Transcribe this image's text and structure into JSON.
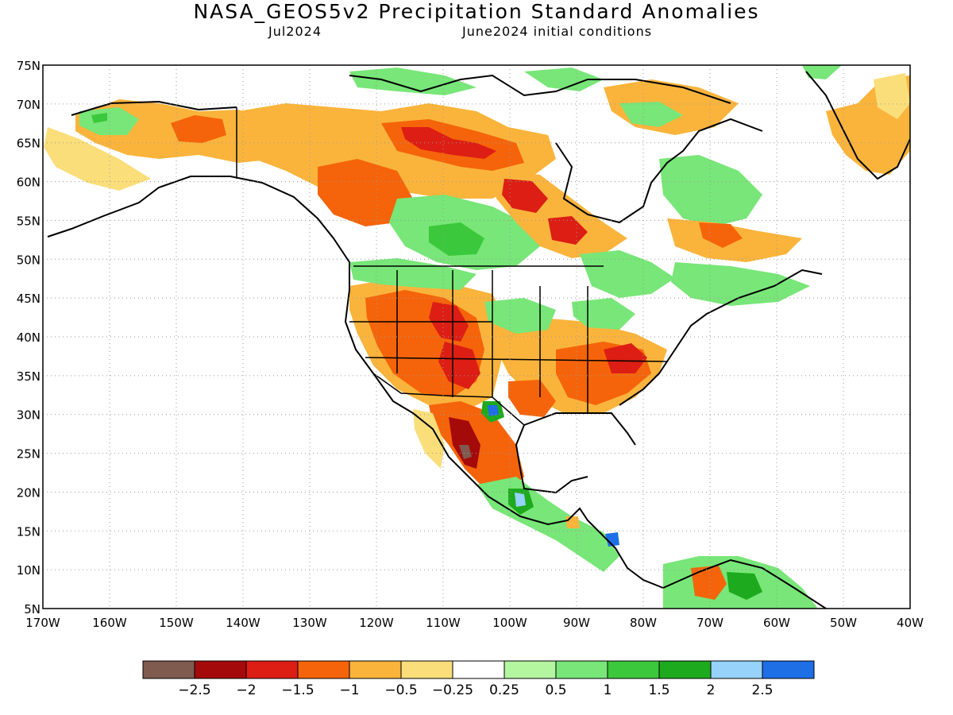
{
  "header": {
    "title": "NASA_GEOS5v2 Precipitation Standard Anomalies",
    "target_month": "Jul2024",
    "initial_conditions": "June2024 initial conditions"
  },
  "map": {
    "lat_labels": [
      "75N",
      "70N",
      "65N",
      "60N",
      "55N",
      "50N",
      "45N",
      "40N",
      "35N",
      "30N",
      "25N",
      "20N",
      "15N",
      "10N",
      "5N"
    ],
    "lon_labels": [
      "170W",
      "160W",
      "150W",
      "140W",
      "130W",
      "120W",
      "110W",
      "100W",
      "90W",
      "80W",
      "70W",
      "60W",
      "50W",
      "40W"
    ],
    "lat_range": [
      5,
      75
    ],
    "lon_range": [
      -170,
      -40
    ],
    "grid": "dotted"
  },
  "legend": {
    "colors": [
      "#7f5a4e",
      "#a50a0a",
      "#dc1e14",
      "#f5640a",
      "#fab43c",
      "#fade7a",
      "#ffffff",
      "#b4f5a0",
      "#78e678",
      "#3cc83c",
      "#1eaa1e",
      "#96d2fa",
      "#1e6ee6"
    ],
    "labels": [
      "-2.5",
      "-2",
      "-1.5",
      "-1",
      "-0.5",
      "-0.25",
      "0.25",
      "0.5",
      "1",
      "1.5",
      "2",
      "2.5"
    ]
  },
  "colors": {
    "land_outline": "#000000",
    "grid": "#9a9a9a"
  }
}
